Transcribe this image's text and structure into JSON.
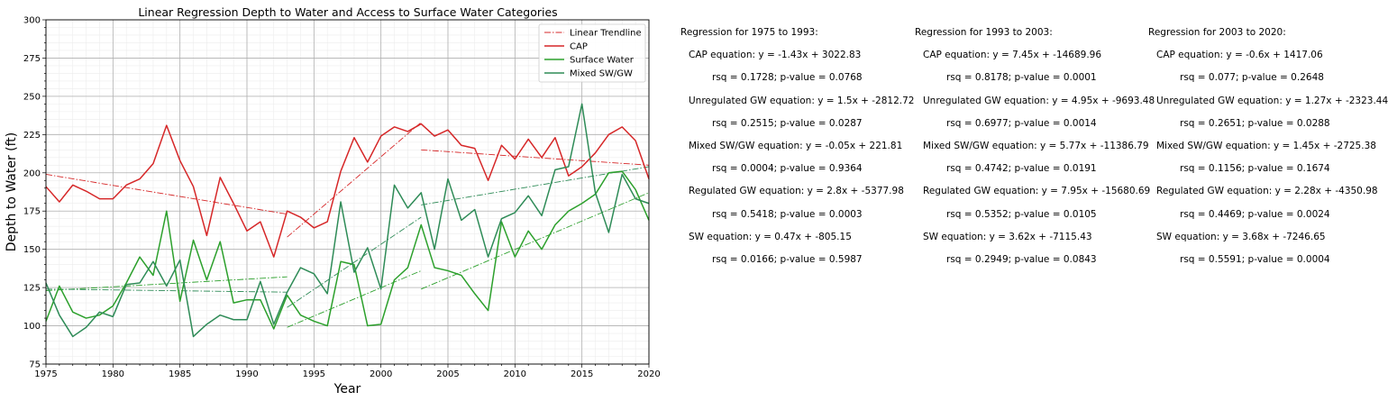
{
  "chart_data": {
    "type": "line",
    "title": "Linear Regression Depth to Water and Access to Surface Water Categories",
    "xlabel": "Year",
    "ylabel": "Depth to Water (ft)",
    "xlim": [
      1975,
      2020
    ],
    "ylim": [
      75,
      300
    ],
    "x_ticks": [
      1975,
      1980,
      1985,
      1990,
      1995,
      2000,
      2005,
      2010,
      2015,
      2020
    ],
    "y_ticks": [
      75,
      100,
      125,
      150,
      175,
      200,
      225,
      250,
      275,
      300
    ],
    "grid": true,
    "legend_position": "top-right",
    "legend": [
      {
        "label": "Linear Trendline",
        "color": "#d62728",
        "style": "dashdot"
      },
      {
        "label": "CAP",
        "color": "#d62728",
        "style": "solid"
      },
      {
        "label": "Surface Water",
        "color": "#2ca02c",
        "style": "solid"
      },
      {
        "label": "Mixed SW/GW",
        "color": "#2e8b57",
        "style": "solid"
      }
    ],
    "x": [
      1975,
      1976,
      1977,
      1978,
      1979,
      1980,
      1981,
      1982,
      1983,
      1984,
      1985,
      1986,
      1987,
      1988,
      1989,
      1990,
      1991,
      1992,
      1993,
      1994,
      1995,
      1996,
      1997,
      1998,
      1999,
      2000,
      2001,
      2002,
      2003,
      2004,
      2005,
      2006,
      2007,
      2008,
      2009,
      2010,
      2011,
      2012,
      2013,
      2014,
      2015,
      2016,
      2017,
      2018,
      2019,
      2020
    ],
    "series": [
      {
        "name": "CAP",
        "color": "#d62728",
        "values": [
          191,
          181,
          192,
          188,
          183,
          183,
          192,
          196,
          206,
          231,
          208,
          191,
          159,
          197,
          180,
          162,
          168,
          145,
          175,
          171,
          164,
          168,
          201,
          223,
          207,
          224,
          230,
          227,
          232,
          224,
          228,
          218,
          216,
          195,
          218,
          209,
          222,
          210,
          223,
          198,
          204,
          213,
          225,
          230,
          221,
          196
        ]
      },
      {
        "name": "Surface Water",
        "color": "#2ca02c",
        "values": [
          103,
          126,
          109,
          105,
          107,
          113,
          128,
          145,
          133,
          175,
          116,
          156,
          130,
          155,
          115,
          117,
          117,
          98,
          120,
          107,
          103,
          100,
          142,
          140,
          100,
          101,
          130,
          138,
          166,
          138,
          136,
          133,
          121,
          110,
          168,
          145,
          162,
          150,
          166,
          175,
          180,
          186,
          200,
          201,
          189,
          169
        ]
      },
      {
        "name": "Mixed SW/GW",
        "color": "#2e8b57",
        "values": [
          128,
          107,
          93,
          99,
          109,
          106,
          127,
          128,
          142,
          126,
          143,
          93,
          101,
          107,
          104,
          104,
          129,
          101,
          122,
          138,
          134,
          121,
          181,
          135,
          151,
          124,
          192,
          177,
          187,
          150,
          196,
          169,
          176,
          145,
          170,
          174,
          185,
          172,
          202,
          204,
          245,
          187,
          161,
          199,
          183,
          180
        ]
      }
    ],
    "trendlines": [
      {
        "color": "#d62728",
        "segments": [
          [
            1975,
            199,
            1993,
            173
          ],
          [
            1993,
            158,
            2003,
            233
          ],
          [
            2003,
            215,
            2020,
            205
          ]
        ]
      },
      {
        "color": "#2ca02c",
        "segments": [
          [
            1975,
            123,
            1993,
            132
          ],
          [
            1993,
            99,
            2003,
            136
          ],
          [
            2003,
            124,
            2020,
            187
          ]
        ]
      },
      {
        "color": "#2e8b57",
        "segments": [
          [
            1975,
            124,
            1993,
            122
          ],
          [
            1993,
            112,
            2003,
            171
          ],
          [
            2003,
            179,
            2020,
            204
          ]
        ]
      }
    ]
  },
  "regressions": [
    {
      "header": "Regression for 1975 to 1993:",
      "lines": [
        {
          "eq": "CAP equation: y = -1.43x + 3022.83",
          "rsq": "rsq = 0.1728; p-value = 0.0768"
        },
        {
          "eq": "Unregulated GW equation: y = 1.5x + -2812.72",
          "rsq": "rsq = 0.2515; p-value = 0.0287"
        },
        {
          "eq": "Mixed SW/GW equation: y = -0.05x + 221.81",
          "rsq": "rsq = 0.0004; p-value = 0.9364"
        },
        {
          "eq": "Regulated GW equation: y = 2.8x + -5377.98",
          "rsq": "rsq = 0.5418; p-value = 0.0003"
        },
        {
          "eq": "SW equation: y = 0.47x + -805.15",
          "rsq": "rsq = 0.0166; p-value = 0.5987"
        }
      ]
    },
    {
      "header": "Regression for 1993 to 2003:",
      "lines": [
        {
          "eq": "CAP equation: y = 7.45x + -14689.96",
          "rsq": "rsq = 0.8178; p-value = 0.0001"
        },
        {
          "eq": "Unregulated GW equation: y = 4.95x + -9693.48",
          "rsq": "rsq = 0.6977; p-value = 0.0014"
        },
        {
          "eq": "Mixed SW/GW equation: y = 5.77x + -11386.79",
          "rsq": "rsq = 0.4742; p-value = 0.0191"
        },
        {
          "eq": "Regulated GW equation: y = 7.95x + -15680.69",
          "rsq": "rsq = 0.5352; p-value = 0.0105"
        },
        {
          "eq": "SW equation: y = 3.62x + -7115.43",
          "rsq": "rsq = 0.2949; p-value = 0.0843"
        }
      ]
    },
    {
      "header": "Regression for 2003 to 2020:",
      "lines": [
        {
          "eq": "CAP equation: y = -0.6x + 1417.06",
          "rsq": "rsq = 0.077; p-value = 0.2648"
        },
        {
          "eq": "Unregulated GW equation: y = 1.27x + -2323.44",
          "rsq": "rsq = 0.2651; p-value = 0.0288"
        },
        {
          "eq": "Mixed SW/GW equation: y = 1.45x + -2725.38",
          "rsq": "rsq = 0.1156; p-value = 0.1674"
        },
        {
          "eq": "Regulated GW equation: y = 2.28x + -4350.98",
          "rsq": "rsq = 0.4469; p-value = 0.0024"
        },
        {
          "eq": "SW equation: y = 3.68x + -7246.65",
          "rsq": "rsq = 0.5591; p-value = 0.0004"
        }
      ]
    }
  ]
}
